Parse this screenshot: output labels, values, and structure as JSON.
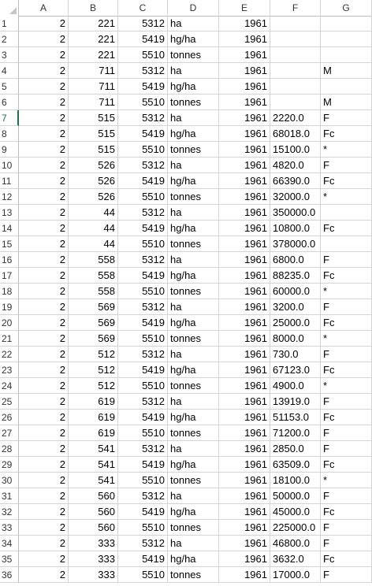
{
  "columns": [
    "A",
    "B",
    "C",
    "D",
    "E",
    "F",
    "G"
  ],
  "rows": [
    [
      "1",
      "2",
      "221",
      "5312",
      "ha",
      "1961",
      "",
      ""
    ],
    [
      "2",
      "2",
      "221",
      "5419",
      "hg/ha",
      "1961",
      "",
      ""
    ],
    [
      "3",
      "2",
      "221",
      "5510",
      "tonnes",
      "1961",
      "",
      ""
    ],
    [
      "4",
      "2",
      "711",
      "5312",
      "ha",
      "1961",
      "",
      "M"
    ],
    [
      "5",
      "2",
      "711",
      "5419",
      "hg/ha",
      "1961",
      "",
      ""
    ],
    [
      "6",
      "2",
      "711",
      "5510",
      "tonnes",
      "1961",
      "",
      "M"
    ],
    [
      "7",
      "2",
      "515",
      "5312",
      "ha",
      "1961",
      "2220.0",
      "F"
    ],
    [
      "8",
      "2",
      "515",
      "5419",
      "hg/ha",
      "1961",
      "68018.0",
      "Fc"
    ],
    [
      "9",
      "2",
      "515",
      "5510",
      "tonnes",
      "1961",
      "15100.0",
      "*"
    ],
    [
      "10",
      "2",
      "526",
      "5312",
      "ha",
      "1961",
      "4820.0",
      "F"
    ],
    [
      "11",
      "2",
      "526",
      "5419",
      "hg/ha",
      "1961",
      "66390.0",
      "Fc"
    ],
    [
      "12",
      "2",
      "526",
      "5510",
      "tonnes",
      "1961",
      "32000.0",
      "*"
    ],
    [
      "13",
      "2",
      "44",
      "5312",
      "ha",
      "1961",
      "350000.0",
      ""
    ],
    [
      "14",
      "2",
      "44",
      "5419",
      "hg/ha",
      "1961",
      "10800.0",
      "Fc"
    ],
    [
      "15",
      "2",
      "44",
      "5510",
      "tonnes",
      "1961",
      "378000.0",
      ""
    ],
    [
      "16",
      "2",
      "558",
      "5312",
      "ha",
      "1961",
      "6800.0",
      "F"
    ],
    [
      "17",
      "2",
      "558",
      "5419",
      "hg/ha",
      "1961",
      "88235.0",
      "Fc"
    ],
    [
      "18",
      "2",
      "558",
      "5510",
      "tonnes",
      "1961",
      "60000.0",
      "*"
    ],
    [
      "19",
      "2",
      "569",
      "5312",
      "ha",
      "1961",
      "3200.0",
      "F"
    ],
    [
      "20",
      "2",
      "569",
      "5419",
      "hg/ha",
      "1961",
      "25000.0",
      "Fc"
    ],
    [
      "21",
      "2",
      "569",
      "5510",
      "tonnes",
      "1961",
      "8000.0",
      "*"
    ],
    [
      "22",
      "2",
      "512",
      "5312",
      "ha",
      "1961",
      "730.0",
      "F"
    ],
    [
      "23",
      "2",
      "512",
      "5419",
      "hg/ha",
      "1961",
      "67123.0",
      "Fc"
    ],
    [
      "24",
      "2",
      "512",
      "5510",
      "tonnes",
      "1961",
      "4900.0",
      "*"
    ],
    [
      "25",
      "2",
      "619",
      "5312",
      "ha",
      "1961",
      "13919.0",
      "F"
    ],
    [
      "26",
      "2",
      "619",
      "5419",
      "hg/ha",
      "1961",
      "51153.0",
      "Fc"
    ],
    [
      "27",
      "2",
      "619",
      "5510",
      "tonnes",
      "1961",
      "71200.0",
      "F"
    ],
    [
      "28",
      "2",
      "541",
      "5312",
      "ha",
      "1961",
      "2850.0",
      "F"
    ],
    [
      "29",
      "2",
      "541",
      "5419",
      "hg/ha",
      "1961",
      "63509.0",
      "Fc"
    ],
    [
      "30",
      "2",
      "541",
      "5510",
      "tonnes",
      "1961",
      "18100.0",
      "*"
    ],
    [
      "31",
      "2",
      "560",
      "5312",
      "ha",
      "1961",
      "50000.0",
      "F"
    ],
    [
      "32",
      "2",
      "560",
      "5419",
      "hg/ha",
      "1961",
      "45000.0",
      "Fc"
    ],
    [
      "33",
      "2",
      "560",
      "5510",
      "tonnes",
      "1961",
      "225000.0",
      "F"
    ],
    [
      "34",
      "2",
      "333",
      "5312",
      "ha",
      "1961",
      "46800.0",
      "F"
    ],
    [
      "35",
      "2",
      "333",
      "5419",
      "hg/ha",
      "1961",
      "3632.0",
      "Fc"
    ],
    [
      "36",
      "2",
      "333",
      "5510",
      "tonnes",
      "1961",
      "17000.0",
      "F"
    ]
  ],
  "selected_row": "7",
  "colors": {
    "grid": "#d4d4d4",
    "header_border": "#bdbdbd",
    "accent": "#217346"
  }
}
